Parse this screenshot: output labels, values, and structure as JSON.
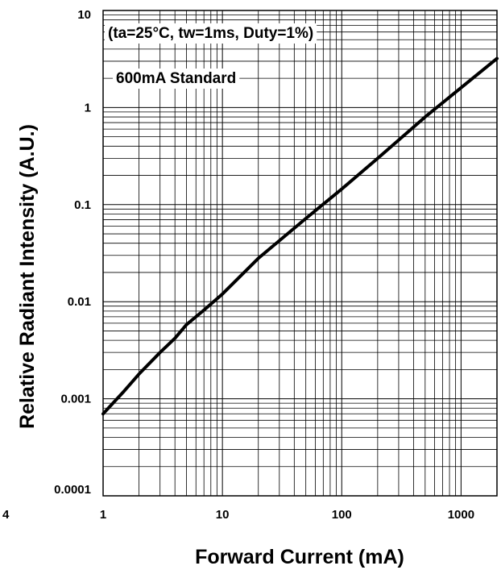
{
  "chart_data": {
    "type": "line",
    "title": "",
    "xlabel": "Forward Current (mA)",
    "ylabel": "Relative Radiant Intensity (A.U.)",
    "xscale": "log",
    "yscale": "log",
    "xlim": [
      1,
      2000
    ],
    "ylim": [
      0.0001,
      10
    ],
    "grid": true,
    "x_ticks": [
      {
        "value": 1,
        "label": "1"
      },
      {
        "value": 10,
        "label": "10"
      },
      {
        "value": 100,
        "label": "100"
      },
      {
        "value": 1000,
        "label": "1000"
      }
    ],
    "y_ticks": [
      {
        "value": 0.0001,
        "label": "0.0001"
      },
      {
        "value": 0.001,
        "label": "0.001"
      },
      {
        "value": 0.01,
        "label": "0.01"
      },
      {
        "value": 0.1,
        "label": "0.1"
      },
      {
        "value": 1,
        "label": "1"
      },
      {
        "value": 10,
        "label": "10"
      }
    ],
    "annotations": [
      {
        "text": "(ta=25°C, tw=1ms, Duty=1%)"
      },
      {
        "text": "600mA Standard"
      }
    ],
    "stray_label": "4",
    "series": [
      {
        "x": [
          1,
          1.5,
          2,
          3,
          4,
          5,
          7,
          10,
          20,
          50,
          100,
          200,
          500,
          1000,
          2000
        ],
        "y": [
          0.0007,
          0.0012,
          0.0018,
          0.003,
          0.0042,
          0.0058,
          0.0082,
          0.012,
          0.028,
          0.072,
          0.145,
          0.3,
          0.8,
          1.6,
          3.2
        ]
      }
    ]
  }
}
